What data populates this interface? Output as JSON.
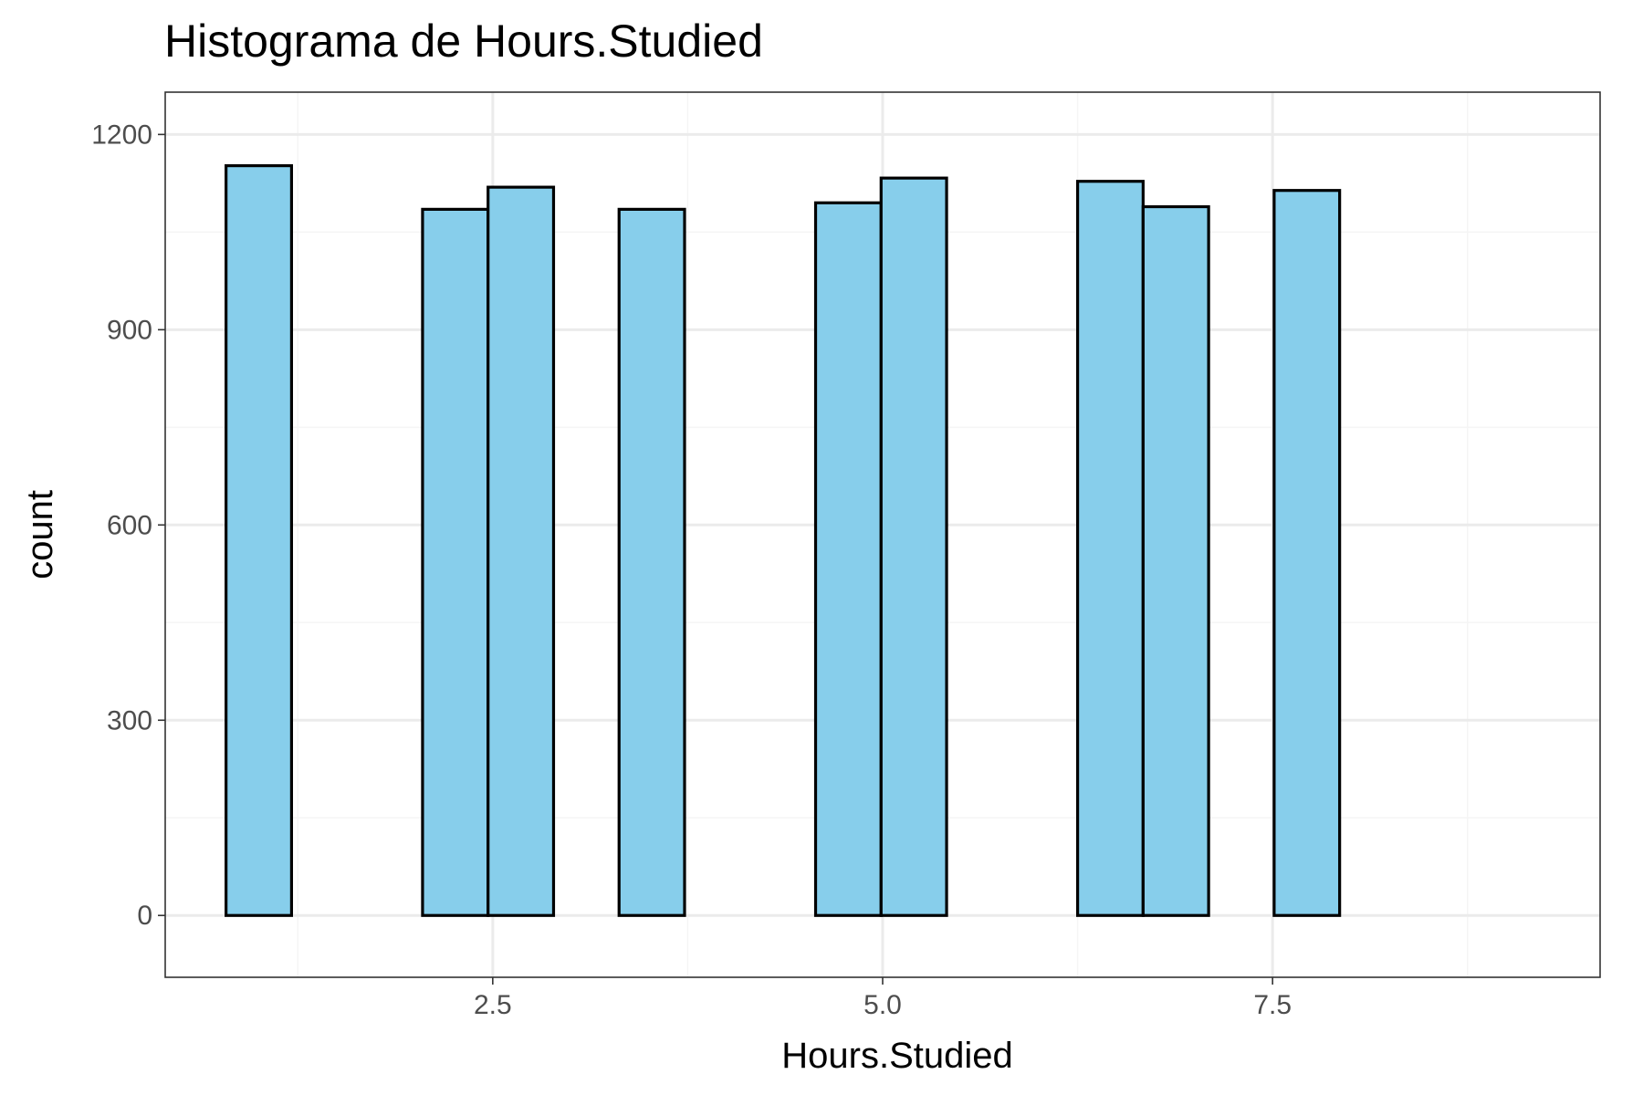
{
  "chart_data": {
    "type": "bar",
    "subtype": "histogram",
    "title": "Histograma de Hours.Studied",
    "xlabel": "Hours.Studied",
    "ylabel": "count",
    "xlim": [
      0.4,
      9.6
    ],
    "ylim": [
      -95,
      1265
    ],
    "x_ticks": [
      2.5,
      5.0,
      7.5
    ],
    "x_tick_labels": [
      "2.5",
      "5.0",
      "7.5"
    ],
    "y_ticks": [
      0,
      300,
      600,
      900,
      1200
    ],
    "y_tick_labels": [
      "0",
      "300",
      "600",
      "900",
      "1200"
    ],
    "grid": true,
    "legend": "none",
    "bin_width": 0.42,
    "bins": [
      {
        "x": 1.0,
        "count": 1152
      },
      {
        "x": 1.42,
        "count": 0
      },
      {
        "x": 1.84,
        "count": 0
      },
      {
        "x": 2.26,
        "count": 1085
      },
      {
        "x": 2.68,
        "count": 1119
      },
      {
        "x": 3.1,
        "count": 0
      },
      {
        "x": 3.52,
        "count": 1085
      },
      {
        "x": 3.94,
        "count": 0
      },
      {
        "x": 4.36,
        "count": 0
      },
      {
        "x": 4.78,
        "count": 1095
      },
      {
        "x": 5.2,
        "count": 1133
      },
      {
        "x": 5.62,
        "count": 0
      },
      {
        "x": 6.04,
        "count": 0
      },
      {
        "x": 6.46,
        "count": 1128
      },
      {
        "x": 6.88,
        "count": 1089
      },
      {
        "x": 7.3,
        "count": 0
      },
      {
        "x": 7.72,
        "count": 1114
      }
    ],
    "colors": {
      "bar_fill": "#87ceeb",
      "bar_stroke": "#000000",
      "grid_major": "#ebebeb",
      "grid_minor": "#f5f5f5",
      "panel_border": "#333333",
      "tick_label": "#4d4d4d",
      "text": "#000000",
      "background": "#ffffff"
    }
  }
}
